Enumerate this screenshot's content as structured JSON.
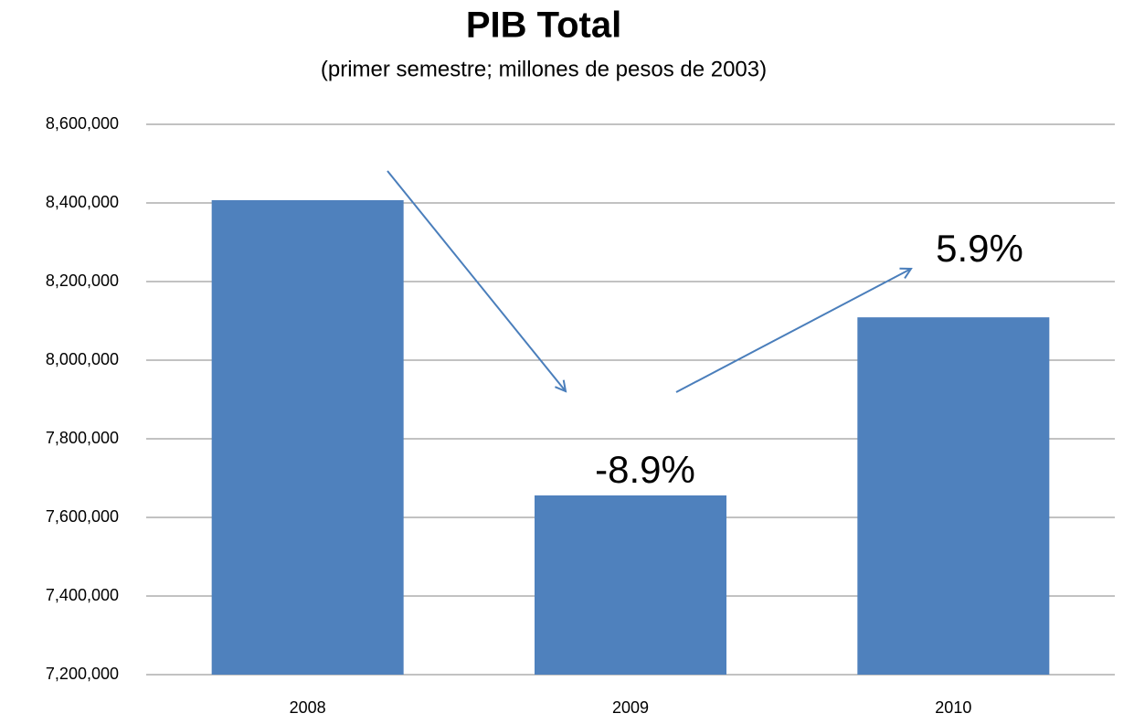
{
  "chart_data": {
    "type": "bar",
    "title": "PIB Total",
    "subtitle": "(primer semestre; millones de pesos de 2003)",
    "categories": [
      "2008",
      "2009",
      "2010"
    ],
    "values": [
      8407000,
      7656000,
      8109000
    ],
    "color": "#4f81bd",
    "ylim": [
      7200000,
      8600000
    ],
    "yticks": [
      {
        "value": 7200000,
        "label": "7,200,000"
      },
      {
        "value": 7400000,
        "label": "7,400,000"
      },
      {
        "value": 7600000,
        "label": "7,600,000"
      },
      {
        "value": 7800000,
        "label": "7,800,000"
      },
      {
        "value": 8000000,
        "label": "8,000,000"
      },
      {
        "value": 8200000,
        "label": "8,200,000"
      },
      {
        "value": 8400000,
        "label": "8,400,000"
      },
      {
        "value": 8600000,
        "label": "8,600,000"
      }
    ],
    "grid": true,
    "annotations": [
      "-8.9%",
      "5.9%"
    ]
  }
}
